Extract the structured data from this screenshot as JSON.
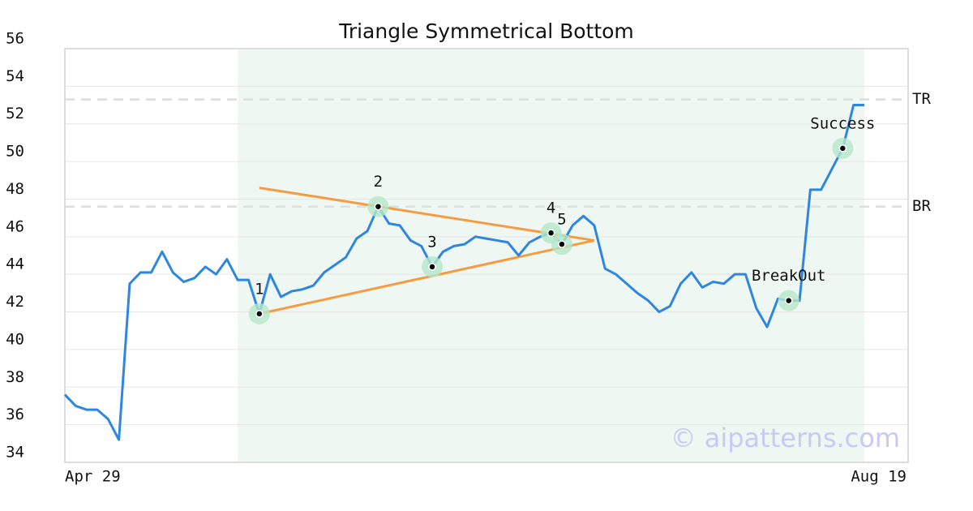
{
  "chart_data": {
    "type": "line",
    "title": "Triangle Symmetrical Bottom",
    "watermark": "© aipatterns.com",
    "categories": [
      "Apr 29",
      null,
      null,
      null,
      null,
      null,
      null,
      null,
      null,
      null,
      null,
      null,
      null,
      null,
      null,
      null,
      null,
      null,
      null,
      null,
      null,
      null,
      null,
      null,
      null,
      null,
      null,
      null,
      null,
      null,
      null,
      null,
      null,
      null,
      null,
      null,
      null,
      null,
      null,
      null,
      null,
      null,
      null,
      null,
      null,
      null,
      null,
      null,
      null,
      null,
      null,
      null,
      null,
      null,
      null,
      null,
      null,
      null,
      null,
      null,
      null,
      null,
      null,
      null,
      null,
      null,
      null,
      null,
      null,
      null,
      null,
      null,
      null,
      null,
      "Aug 19"
    ],
    "series": [
      {
        "color": "#2e86de",
        "values": [
          37.6,
          37.0,
          36.8,
          36.8,
          36.3,
          35.2,
          43.5,
          44.1,
          44.1,
          45.2,
          44.1,
          43.6,
          43.8,
          44.4,
          44.0,
          44.8,
          43.7,
          43.7,
          41.9,
          44.0,
          42.8,
          43.1,
          43.2,
          43.4,
          44.1,
          44.5,
          44.9,
          45.9,
          46.3,
          47.6,
          46.7,
          46.6,
          45.8,
          45.5,
          44.4,
          45.2,
          45.5,
          45.6,
          46.0,
          45.9,
          45.8,
          45.7,
          45.0,
          45.7,
          46.0,
          46.2,
          45.6,
          46.6,
          47.1,
          46.6,
          44.3,
          44.0,
          43.5,
          43.0,
          42.6,
          42.0,
          42.3,
          43.5,
          44.1,
          43.3,
          43.6,
          43.5,
          44.0,
          44.0,
          42.2,
          41.2,
          42.7,
          42.6,
          42.6,
          48.5,
          48.5,
          49.6,
          50.7,
          53.0,
          53.0
        ]
      }
    ],
    "ylim": [
      34,
      56
    ],
    "yticks": [
      34,
      36,
      38,
      40,
      42,
      44,
      46,
      48,
      50,
      52,
      54,
      56
    ],
    "grid": true,
    "shade": {
      "from": 16,
      "to": 74,
      "color": "#eef7f2"
    },
    "trendlines": [
      {
        "color": "#f59c42",
        "x": [
          18,
          49
        ],
        "values": [
          48.6,
          45.8
        ]
      },
      {
        "color": "#f59c42",
        "x": [
          18,
          49
        ],
        "values": [
          41.9,
          45.8
        ]
      }
    ],
    "reference_lines": [
      {
        "label": "TR",
        "value": 53.3
      },
      {
        "label": "BR",
        "value": 47.6
      }
    ],
    "points": [
      {
        "label": "1",
        "index": 18
      },
      {
        "label": "2",
        "index": 29
      },
      {
        "label": "3",
        "index": 34
      },
      {
        "label": "4",
        "index": 45
      },
      {
        "label": "5",
        "index": 46
      },
      {
        "label": "BreakOut",
        "index": 67
      },
      {
        "label": "Success",
        "index": 72
      }
    ]
  }
}
